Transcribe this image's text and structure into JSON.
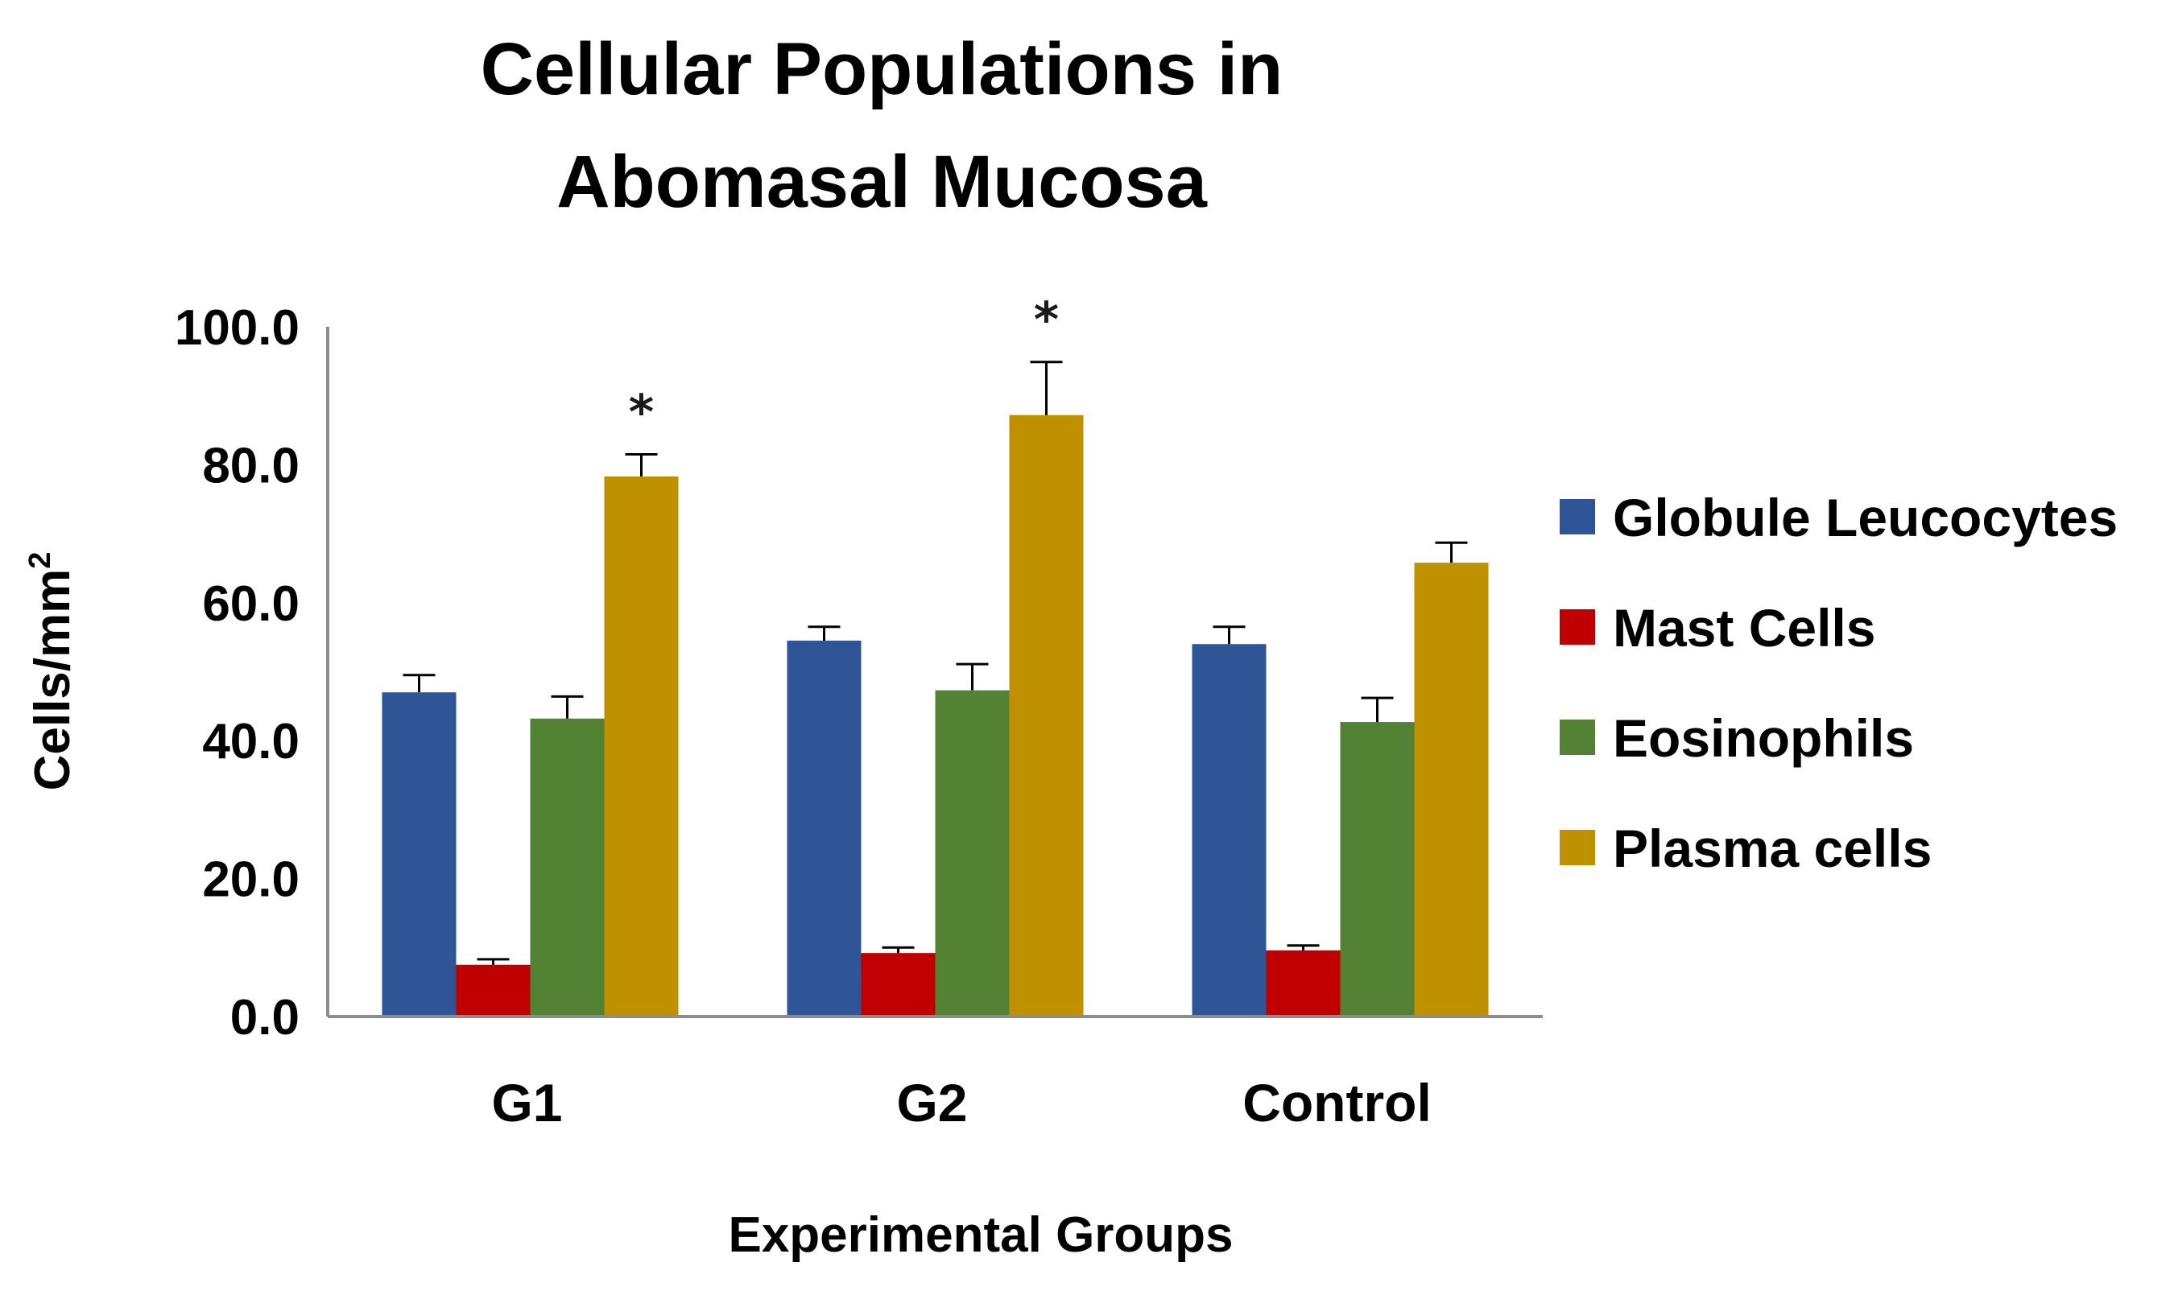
{
  "chart_data": {
    "type": "bar",
    "title_lines": [
      "Cellular Populations in",
      "Abomasal Mucosa"
    ],
    "xlabel": "Experimental Groups",
    "ylabel": "Cells/mm",
    "ylabel_superscript": "2",
    "categories": [
      "G1",
      "G2",
      "Control"
    ],
    "ylim": [
      0,
      100
    ],
    "yticks": [
      "0.0",
      "20.0",
      "40.0",
      "60.0",
      "80.0",
      "100.0"
    ],
    "ytick_values": [
      0,
      20,
      40,
      60,
      80,
      100
    ],
    "series": [
      {
        "name": "Globule Leucocytes",
        "color": "#2F5597",
        "values": [
          47.0,
          54.5,
          54.0
        ],
        "errors": [
          2.5,
          2.0,
          2.5
        ]
      },
      {
        "name": "Mast Cells",
        "color": "#C00000",
        "values": [
          7.5,
          9.2,
          9.6
        ],
        "errors": [
          0.8,
          0.8,
          0.7
        ]
      },
      {
        "name": "Eosinophils",
        "color": "#548235",
        "values": [
          43.2,
          47.3,
          42.7
        ],
        "errors": [
          3.2,
          3.8,
          3.5
        ]
      },
      {
        "name": "Plasma cells",
        "color": "#BF9000",
        "values": [
          78.3,
          87.2,
          65.8
        ],
        "errors": [
          3.2,
          7.7,
          2.9
        ]
      }
    ],
    "annotations": [
      {
        "text": "*",
        "category": "G1",
        "series": "Plasma cells"
      },
      {
        "text": "*",
        "category": "G2",
        "series": "Plasma cells"
      }
    ],
    "legend": "right",
    "grid": false
  }
}
